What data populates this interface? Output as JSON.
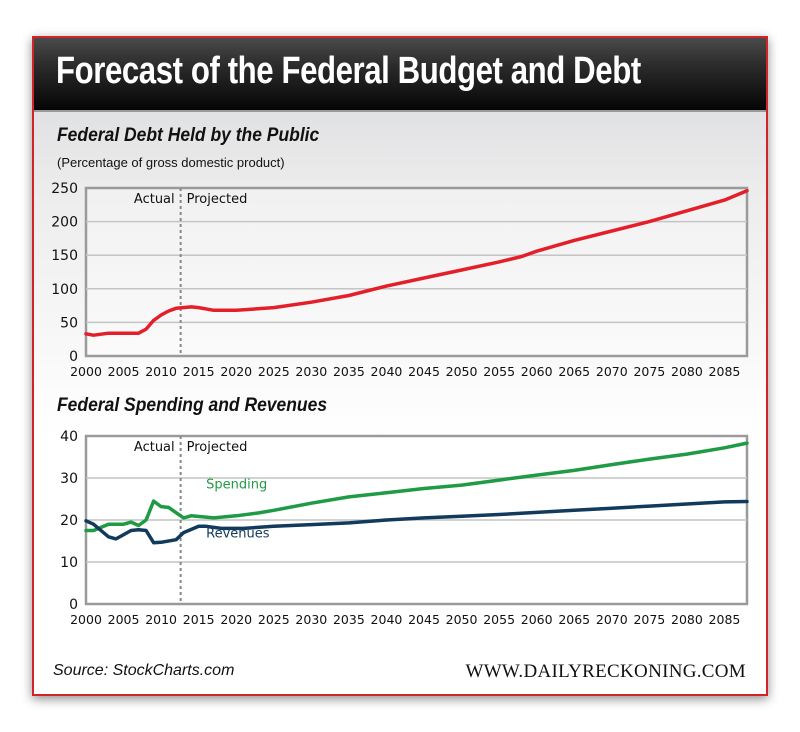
{
  "title": "Forecast of the Federal Budget and Debt",
  "footer": {
    "source": "Source: StockCharts.com",
    "site": "WWW.DAILYRECKONING.COM"
  },
  "colors": {
    "debt": "#e3202a",
    "spending": "#1f9a45",
    "revenues": "#123a5c",
    "frame": "#d1232a"
  },
  "chart_data": [
    {
      "type": "line",
      "title": "Federal Debt Held by the Public",
      "subtitle": "(Percentage of gross domestic product)",
      "xlabel": "",
      "ylabel": "",
      "xlim": [
        2000,
        2088
      ],
      "ylim": [
        0,
        250
      ],
      "xticks": [
        "2000",
        "2005",
        "2010",
        "2015",
        "2020",
        "2025",
        "2030",
        "2035",
        "2040",
        "2045",
        "2050",
        "2055",
        "2060",
        "2065",
        "2070",
        "2075",
        "2080",
        "2085"
      ],
      "yticks": [
        "0",
        "50",
        "100",
        "150",
        "200",
        "250"
      ],
      "grid": true,
      "divider": {
        "year": 2012.6,
        "left_label": "Actual",
        "right_label": "Projected"
      },
      "series": [
        {
          "name": "Debt",
          "x": [
            2000,
            2001,
            2003,
            2007,
            2008,
            2009,
            2010,
            2011,
            2012,
            2014,
            2015,
            2017,
            2020,
            2025,
            2030,
            2035,
            2040,
            2045,
            2050,
            2055,
            2058,
            2060,
            2065,
            2070,
            2075,
            2080,
            2085,
            2088
          ],
          "y": [
            33,
            31,
            34,
            34,
            40,
            53,
            61,
            67,
            71,
            73,
            72,
            68,
            68,
            72,
            80,
            90,
            104,
            116,
            128,
            140,
            148,
            156,
            172,
            186,
            200,
            216,
            232,
            246
          ]
        }
      ]
    },
    {
      "type": "line",
      "title": "Federal Spending and Revenues",
      "xlabel": "",
      "ylabel": "",
      "xlim": [
        2000,
        2088
      ],
      "ylim": [
        0,
        40
      ],
      "xticks": [
        "2000",
        "2005",
        "2010",
        "2015",
        "2020",
        "2025",
        "2030",
        "2035",
        "2040",
        "2045",
        "2050",
        "2055",
        "2060",
        "2065",
        "2070",
        "2075",
        "2080",
        "2085"
      ],
      "yticks": [
        "0",
        "10",
        "20",
        "30",
        "40"
      ],
      "grid": true,
      "divider": {
        "year": 2012.6,
        "left_label": "Actual",
        "right_label": "Projected"
      },
      "series": [
        {
          "name": "Spending",
          "x": [
            2000,
            2001,
            2003,
            2005,
            2006,
            2007,
            2008,
            2009,
            2010,
            2011,
            2013,
            2014,
            2017,
            2020,
            2023,
            2025,
            2030,
            2035,
            2040,
            2045,
            2050,
            2055,
            2060,
            2065,
            2070,
            2075,
            2080,
            2085,
            2088
          ],
          "y": [
            17.5,
            17.5,
            19,
            19,
            19.5,
            18.7,
            20,
            24.5,
            23.2,
            23,
            20.5,
            21,
            20.5,
            21,
            21.7,
            22.3,
            24,
            25.5,
            26.5,
            27.5,
            28.3,
            29.5,
            30.7,
            31.8,
            33.2,
            34.5,
            35.7,
            37.2,
            38.3
          ]
        },
        {
          "name": "Revenues",
          "x": [
            2000,
            2001,
            2003,
            2004,
            2006,
            2007,
            2008,
            2009,
            2010,
            2012,
            2013,
            2015,
            2016,
            2018,
            2021,
            2025,
            2030,
            2035,
            2040,
            2045,
            2050,
            2055,
            2060,
            2065,
            2070,
            2075,
            2080,
            2085,
            2088
          ],
          "y": [
            19.8,
            19,
            16,
            15.5,
            17.5,
            17.7,
            17.5,
            14.6,
            14.7,
            15.3,
            17,
            18.5,
            18.5,
            18,
            18,
            18.5,
            18.9,
            19.3,
            20,
            20.5,
            20.9,
            21.3,
            21.8,
            22.3,
            22.8,
            23.3,
            23.8,
            24.3,
            24.4
          ]
        }
      ]
    }
  ]
}
